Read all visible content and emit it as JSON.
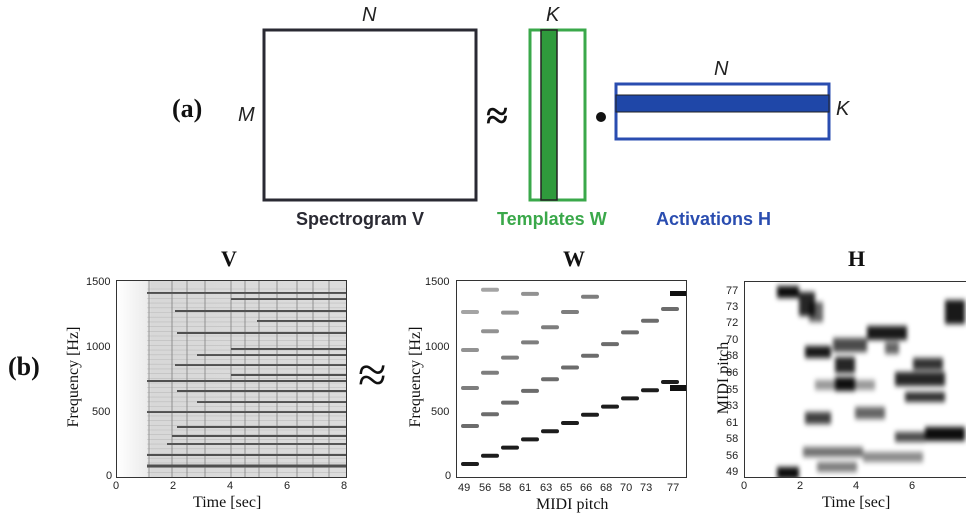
{
  "panel_a": {
    "label": "(a)",
    "dims": {
      "n_top": "N",
      "m_left": "M",
      "k_top": "K",
      "n_right": "N",
      "k_right": "K"
    },
    "approx": "≈",
    "dot": "•",
    "captions": {
      "spectrogram": "Spectrogram V",
      "templates": "Templates W",
      "activations": "Activations H"
    },
    "colors": {
      "spectrogram": "#2a2a33",
      "templates": "#3aa84a",
      "templates_fill": "#2f9a3c",
      "activations": "#2a4db0",
      "activations_fill": "#1f47a8"
    }
  },
  "panel_b": {
    "label": "(b)",
    "approx": "≈",
    "plots": {
      "V": {
        "title": "V",
        "xlabel": "Time [sec]",
        "ylabel": "Frequency [Hz]",
        "xticks": [
          "0",
          "2",
          "4",
          "6",
          "8"
        ],
        "yticks": [
          "0",
          "500",
          "1000",
          "1500"
        ]
      },
      "W": {
        "title": "W",
        "xlabel": "MIDI pitch",
        "ylabel": "Frequency [Hz]",
        "xticks": [
          "49",
          "56",
          "58",
          "61",
          "63",
          "65",
          "66",
          "68",
          "70",
          "73",
          "77"
        ],
        "yticks": [
          "0",
          "500",
          "1000",
          "1500"
        ]
      },
      "H": {
        "title": "H",
        "xlabel": "Time [sec]",
        "ylabel": "MIDI pitch",
        "xticks": [
          "0",
          "2",
          "4",
          "6"
        ],
        "yticks": [
          "49",
          "56",
          "58",
          "61",
          "63",
          "65",
          "66",
          "68",
          "70",
          "72",
          "73",
          "77"
        ]
      }
    }
  }
}
